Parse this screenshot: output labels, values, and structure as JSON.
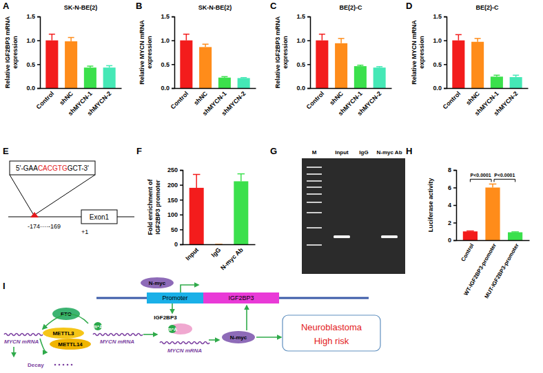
{
  "panel_labels": [
    "A",
    "B",
    "C",
    "D",
    "E",
    "F",
    "G",
    "H",
    "I"
  ],
  "chart_data": [
    {
      "type": "bar",
      "title": "SK-N-BE(2)",
      "ylabel": "Relative IGF2BP3 mRNA expression",
      "categories": [
        "Control",
        "shNC",
        "shMYCN-1",
        "shMYCN-2"
      ],
      "values": [
        1.0,
        0.98,
        0.43,
        0.43
      ],
      "errors": [
        0.13,
        0.08,
        0.03,
        0.04
      ],
      "colors": [
        "#f31c1c",
        "#ff8c1a",
        "#3be04c",
        "#45e8b6"
      ],
      "ylim": [
        0,
        1.5
      ],
      "yticks": [
        {
          "value": 0,
          "label": "0.0"
        },
        0.5,
        {
          "value": 1,
          "label": "1.0"
        },
        1.5
      ]
    },
    {
      "type": "bar",
      "title": "SK-N-BE(2)",
      "ylabel": "Relative MYCN mRNA expression",
      "categories": [
        "Control",
        "shNC",
        "shMYCN-1",
        "shMYCN-2"
      ],
      "values": [
        1.0,
        0.86,
        0.22,
        0.21
      ],
      "errors": [
        0.13,
        0.06,
        0.02,
        0.01
      ],
      "colors": [
        "#f31c1c",
        "#ff8c1a",
        "#3be04c",
        "#45e8b6"
      ],
      "ylim": [
        0,
        1.5
      ],
      "yticks": [
        {
          "value": 0,
          "label": "0.0"
        },
        0.5,
        {
          "value": 1,
          "label": "1.0"
        },
        1.5
      ]
    },
    {
      "type": "bar",
      "title": "BE(2)-C",
      "ylabel": "Relative IGF2BP3 mRNA expression",
      "categories": [
        "Control",
        "shNC",
        "shMYCN-1",
        "shMYCN-2"
      ],
      "values": [
        1.0,
        0.94,
        0.46,
        0.43
      ],
      "errors": [
        0.13,
        0.1,
        0.02,
        0.02
      ],
      "colors": [
        "#f31c1c",
        "#ff8c1a",
        "#3be04c",
        "#45e8b6"
      ],
      "ylim": [
        0,
        1.5
      ],
      "yticks": [
        {
          "value": 0,
          "label": "0.0"
        },
        0.5,
        {
          "value": 1,
          "label": "1.0"
        },
        1.5
      ]
    },
    {
      "type": "bar",
      "title": "BE(2)-C",
      "ylabel": "Relative MYCN mRNA expression",
      "categories": [
        "Control",
        "shNC",
        "shMYCN-1",
        "shMYCN-2"
      ],
      "values": [
        1.0,
        0.97,
        0.24,
        0.23
      ],
      "errors": [
        0.12,
        0.07,
        0.03,
        0.04
      ],
      "colors": [
        "#f31c1c",
        "#ff8c1a",
        "#3be04c",
        "#45e8b6"
      ],
      "ylim": [
        0,
        1.5
      ],
      "yticks": [
        {
          "value": 0,
          "label": "0.0"
        },
        0.5,
        {
          "value": 1,
          "label": "1.0"
        },
        1.5
      ]
    },
    {
      "type": "bar",
      "ylabel": "Fold enrichment of IGF2BP3 promoter",
      "categories": [
        "Input",
        "IgG",
        "N-myc Ab"
      ],
      "values": [
        190,
        0,
        212
      ],
      "errors": [
        45,
        0,
        25
      ],
      "colors": [
        "#f31c1c",
        "#ff8c1a",
        "#3be04c"
      ],
      "ylim": [
        0,
        250
      ],
      "yticks": [
        0,
        50,
        100,
        150,
        200,
        250
      ]
    },
    {
      "type": "bar",
      "ylabel": "Luciferase activity",
      "categories": [
        "Control",
        "WT-IGF2BP3-promoter",
        "MUT-IGF2BP3-promoter"
      ],
      "values": [
        1.0,
        6.0,
        0.9
      ],
      "errors": [
        0.05,
        0.4,
        0.05
      ],
      "colors": [
        "#f31c1c",
        "#ff8c1a",
        "#3be04c"
      ],
      "ylim": [
        0,
        8
      ],
      "yticks": [
        0,
        2,
        4,
        6,
        8
      ],
      "annotations": [
        {
          "text": "P<0.0001",
          "from": 0,
          "to": 1
        },
        {
          "text": "P<0.0001",
          "from": 1,
          "to": 2
        }
      ]
    }
  ],
  "diagram_e": {
    "sequence": [
      "5'-GAA",
      "CACGTG",
      "GCT-3'"
    ],
    "site": "-174····-169",
    "tss": "+1",
    "exon": "Exon1"
  },
  "gel_g": {
    "lanes": [
      "M",
      "Input",
      "IgG",
      "N-myc Ab"
    ]
  },
  "schematic_i": {
    "nodes": [
      "N-myc",
      "Promoter",
      "IGF2BP3",
      "IGF2BP3",
      "m⁶A",
      "FTO",
      "METTL3",
      "METTL14",
      "m⁶A",
      "MYCN mRNA",
      "MYCN mRNA",
      "MYCN mRNA",
      "Decay",
      "N-myc",
      "Neuroblastoma",
      "High risk"
    ]
  }
}
